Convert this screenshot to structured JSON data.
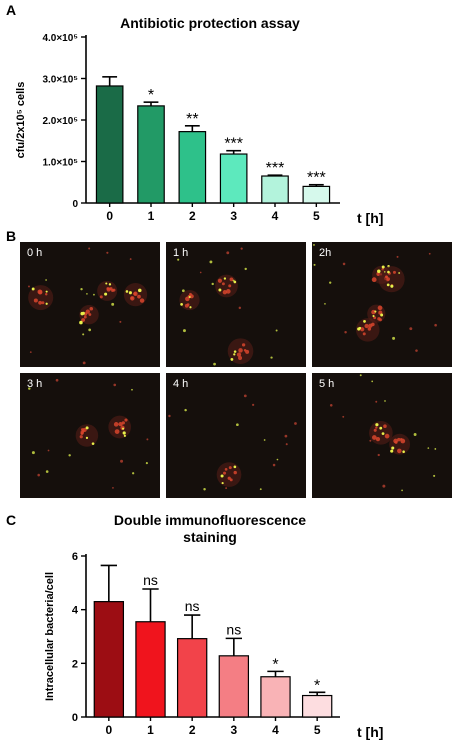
{
  "panels": {
    "a_letter": "A",
    "b_letter": "B",
    "c_letter": "C"
  },
  "chart_data": [
    {
      "type": "bar",
      "title": "Antibiotic protection assay",
      "ylabel": "cfu/2x10⁵ cells",
      "xlabel": "t [h]",
      "categories": [
        "0",
        "1",
        "2",
        "3",
        "4",
        "5"
      ],
      "values": [
        282000,
        234000,
        172000,
        118000,
        65000,
        40000
      ],
      "errors": [
        22000,
        9000,
        14000,
        8000,
        2000,
        4000
      ],
      "annotations": [
        "",
        "*",
        "**",
        "***",
        "***",
        "***"
      ],
      "ylim": [
        0,
        400000
      ],
      "yticks": [
        0,
        100000,
        200000,
        300000,
        400000
      ],
      "ytick_labels": [
        "0",
        "1.0×10⁵",
        "2.0×10⁵",
        "3.0×10⁵",
        "4.0×10⁵"
      ],
      "colors": [
        "#1a6b47",
        "#229a66",
        "#2ec18a",
        "#5de9bd",
        "#b3f3dc",
        "#d6f9ec"
      ],
      "grid": false
    },
    {
      "type": "bar",
      "title": "Double immunofluorescence staining",
      "title_lines": [
        "Double immunofluorescence",
        "staining"
      ],
      "ylabel": "Intracellular bacteria/cell",
      "xlabel": "t [h]",
      "categories": [
        "0",
        "1",
        "2",
        "3",
        "4",
        "5"
      ],
      "values": [
        4.3,
        3.55,
        2.92,
        2.28,
        1.5,
        0.8
      ],
      "errors": [
        1.35,
        1.22,
        0.88,
        0.65,
        0.2,
        0.12
      ],
      "annotations": [
        "",
        "ns",
        "ns",
        "ns",
        "*",
        "*"
      ],
      "ylim": [
        0,
        6
      ],
      "yticks": [
        0,
        2,
        4,
        6
      ],
      "ytick_labels": [
        "0",
        "2",
        "4",
        "6"
      ],
      "colors": [
        "#9c0d13",
        "#f0141d",
        "#f2434a",
        "#f47e84",
        "#f9b3b6",
        "#fddde0"
      ],
      "grid": false
    }
  ],
  "micrographs": [
    {
      "label": "0 h"
    },
    {
      "label": "1 h"
    },
    {
      "label": "2h"
    },
    {
      "label": "3 h"
    },
    {
      "label": "4 h"
    },
    {
      "label": "5 h"
    }
  ]
}
